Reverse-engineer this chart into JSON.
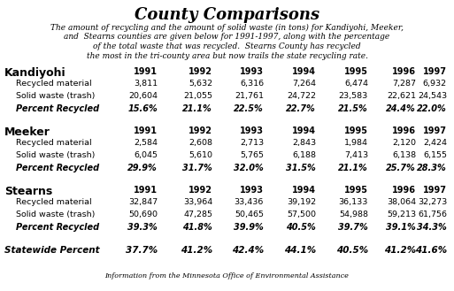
{
  "title": "County Comparisons",
  "subtitle_lines": [
    "The amount of recycling and the amount of solid waste (in tons) for Kandiyohi, Meeker,",
    "and  Stearns counties are given below for 1991-1997, along with the percentage",
    "of the total waste that was recycled.  Stearns County has recycled",
    "the most in the tri-county area but now trails the state recycling rate."
  ],
  "footer": "Information from the Minnesota Office of Environmental Assistance",
  "years": [
    "1991",
    "1992",
    "1993",
    "1994",
    "1995",
    "1996",
    "1997"
  ],
  "row_label_recycled": "Recycled material",
  "row_label_solid": "Solid waste (trash)",
  "row_label_percent": "Percent Recycled",
  "row_label_statewide": "Statewide Percent",
  "counties": [
    {
      "name": "Kandiyohi",
      "recycled": [
        "3,811",
        "5,632",
        "6,316",
        "7,264",
        "6,474",
        "7,287",
        "6,932"
      ],
      "solid_waste": [
        "20,604",
        "21,055",
        "21,761",
        "24,722",
        "23,583",
        "22,621",
        "24,543"
      ],
      "percent": [
        "15.6%",
        "21.1%",
        "22.5%",
        "22.7%",
        "21.5%",
        "24.4%",
        "22.0%"
      ]
    },
    {
      "name": "Meeker",
      "recycled": [
        "2,584",
        "2,608",
        "2,713",
        "2,843",
        "1,984",
        "2,120",
        "2,424"
      ],
      "solid_waste": [
        "6,045",
        "5,610",
        "5,765",
        "6,188",
        "7,413",
        "6,138",
        "6,155"
      ],
      "percent": [
        "29.9%",
        "31.7%",
        "32.0%",
        "31.5%",
        "21.1%",
        "25.7%",
        "28.3%"
      ]
    },
    {
      "name": "Stearns",
      "recycled": [
        "32,847",
        "33,964",
        "33,436",
        "39,192",
        "36,133",
        "38,064",
        "32,273"
      ],
      "solid_waste": [
        "50,690",
        "47,285",
        "50,465",
        "57,500",
        "54,988",
        "59,213",
        "61,756"
      ],
      "percent": [
        "39.3%",
        "41.8%",
        "39.9%",
        "40.5%",
        "39.7%",
        "39.1%",
        "34.3%"
      ]
    }
  ],
  "statewide": [
    "37.7%",
    "41.2%",
    "42.4%",
    "44.1%",
    "40.5%",
    "41.2%",
    "41.6%"
  ],
  "background_color": "#ffffff",
  "title_fontsize": 13,
  "subtitle_fontsize": 6.5,
  "county_name_fontsize": 9,
  "year_header_fontsize": 7,
  "data_fontsize": 6.8,
  "percent_fontsize": 7,
  "statewide_fontsize": 7.5,
  "footer_fontsize": 5.8
}
